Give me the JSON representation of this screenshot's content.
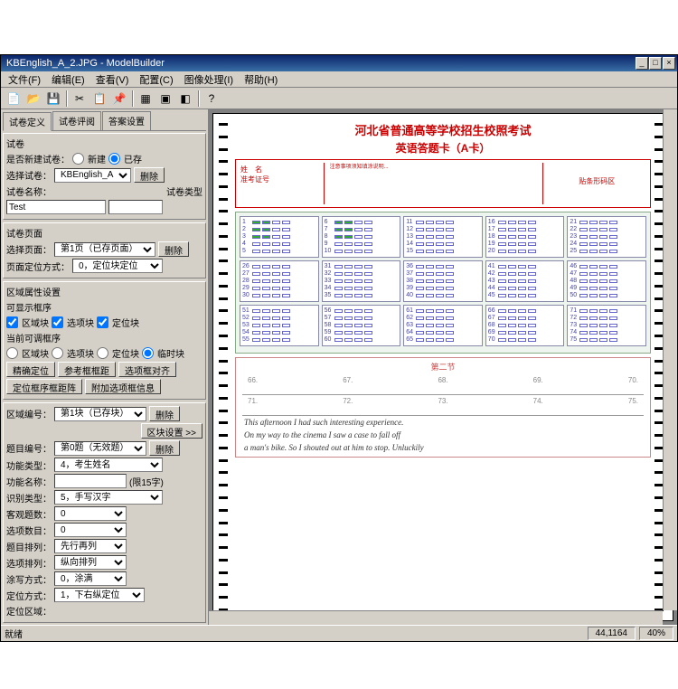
{
  "window": {
    "title": "KBEnglish_A_2.JPG - ModelBuilder",
    "min": "_",
    "max": "□",
    "close": "×"
  },
  "menu": {
    "file": "文件(F)",
    "edit": "编辑(E)",
    "view": "查看(V)",
    "config": "配置(C)",
    "imgproc": "图像处理(I)",
    "help": "帮助(H)"
  },
  "tabs": {
    "def": "试卷定义",
    "review": "试卷评阅",
    "answer": "答案设置"
  },
  "sec_paper": {
    "title": "试卷",
    "newlabel": "是否新建试卷：",
    "opt_new": "新建",
    "opt_exist": "已存",
    "select_label": "选择试卷：",
    "select_val": "KBEnglish_A",
    "btn_del": "删除",
    "name_label": "试卷名称：",
    "name_val": "",
    "type_label": "试卷类型",
    "test_label": "Test",
    "test_val": ""
  },
  "sec_page": {
    "title": "试卷页面",
    "page_label": "选择页面：",
    "page_val": "第1页（已存页面）",
    "btn_del": "删除",
    "locate_label": "页面定位方式：",
    "locate_val": "0，定位块定位"
  },
  "sec_zone": {
    "title": "区域属性设置",
    "show_label": "可显示框序",
    "c1": "区域块",
    "c2": "选项块",
    "c3": "定位块",
    "adj_label": "当前可调框序",
    "r1": "区域块",
    "r2": "选项块",
    "r3": "定位块",
    "r4": "临时块",
    "b1": "精确定位",
    "b2": "参考框框距",
    "b3": "选项框对齐",
    "b4": "定位框序框距阵",
    "b5": "附加选项框信息"
  },
  "props": {
    "zone_num": "区域编号：",
    "zone_val": "第1块（已存块）",
    "btn_del": "删除",
    "btn_set": "区块设置 >>",
    "q_num": "题目编号：",
    "q_val": "第0题（无效题）",
    "btn_del2": "删除",
    "func_type": "功能类型：",
    "func_type_val": "4，考生姓名",
    "func_name": "功能名称：",
    "func_name_val": "",
    "limit": "(限15字)",
    "rec_type": "识别类型：",
    "rec_type_val": "5，手写汉字",
    "obj_count": "客观题数：",
    "obj_val": "0",
    "opt_count": "选项数目：",
    "opt_val": "0",
    "q_order": "题目排列：",
    "q_order_val": "先行再列",
    "opt_order": "选项排列：",
    "opt_order_val": "纵向排列",
    "smear": "涂写方式：",
    "smear_val": "0，涂满",
    "loc_mode": "定位方式：",
    "loc_val": "1，下右纵定位",
    "loc_zone": "定位区域："
  },
  "sheet": {
    "title": "河北省普通高等学校招生校照考试",
    "subtitle": "英语答题卡（A卡）",
    "name": "姓　名",
    "id": "准考证号",
    "barcode": "贴条形码区",
    "section2": "第二节",
    "nums": [
      "66.",
      "67.",
      "68.",
      "69.",
      "70."
    ],
    "nums2": [
      "71.",
      "72.",
      "73.",
      "74.",
      "75."
    ],
    "essay1": "This afternoon I had such interesting experience.",
    "essay2": "On my way to the cinema I saw a case to fall off",
    "essay3": "a man's bike. So I shouted out at him to stop. Unluckily"
  },
  "status": {
    "left": "就绪",
    "coords": "44,1164",
    "zoom": "40%"
  },
  "colors": {
    "titlebar": "#0a246a",
    "ui_bg": "#d4d0c8",
    "sheet_red": "#c00",
    "bubble_border": "#66c",
    "bubble_fill": "#3a3"
  }
}
